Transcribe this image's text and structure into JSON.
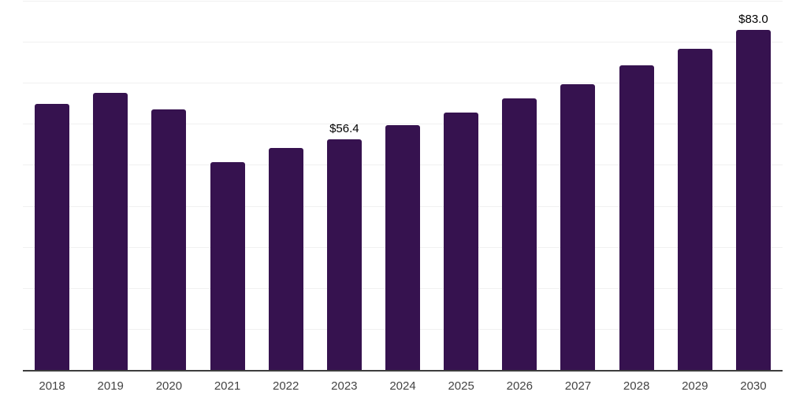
{
  "chart_data": {
    "type": "bar",
    "title": "",
    "xlabel": "",
    "ylabel": "",
    "categories": [
      "2018",
      "2019",
      "2020",
      "2021",
      "2022",
      "2023",
      "2024",
      "2025",
      "2026",
      "2027",
      "2028",
      "2029",
      "2030"
    ],
    "values": [
      64.9,
      67.6,
      63.6,
      50.8,
      54.2,
      56.4,
      59.7,
      62.8,
      66.3,
      69.8,
      74.3,
      78.3,
      83.0
    ],
    "data_labels": [
      {
        "category": "2023",
        "text": "$56.4"
      },
      {
        "category": "2030",
        "text": "$83.0"
      }
    ],
    "ylim": [
      0,
      90
    ],
    "gridline_step": 10,
    "grid": "horizontal-light",
    "legend_position": "none",
    "bar_color": "#36124F",
    "axis_color": "#3D3D3D",
    "gridline_color": "#F1F1F1",
    "tick_label_color": "#444444",
    "data_label_color": "#000000"
  }
}
